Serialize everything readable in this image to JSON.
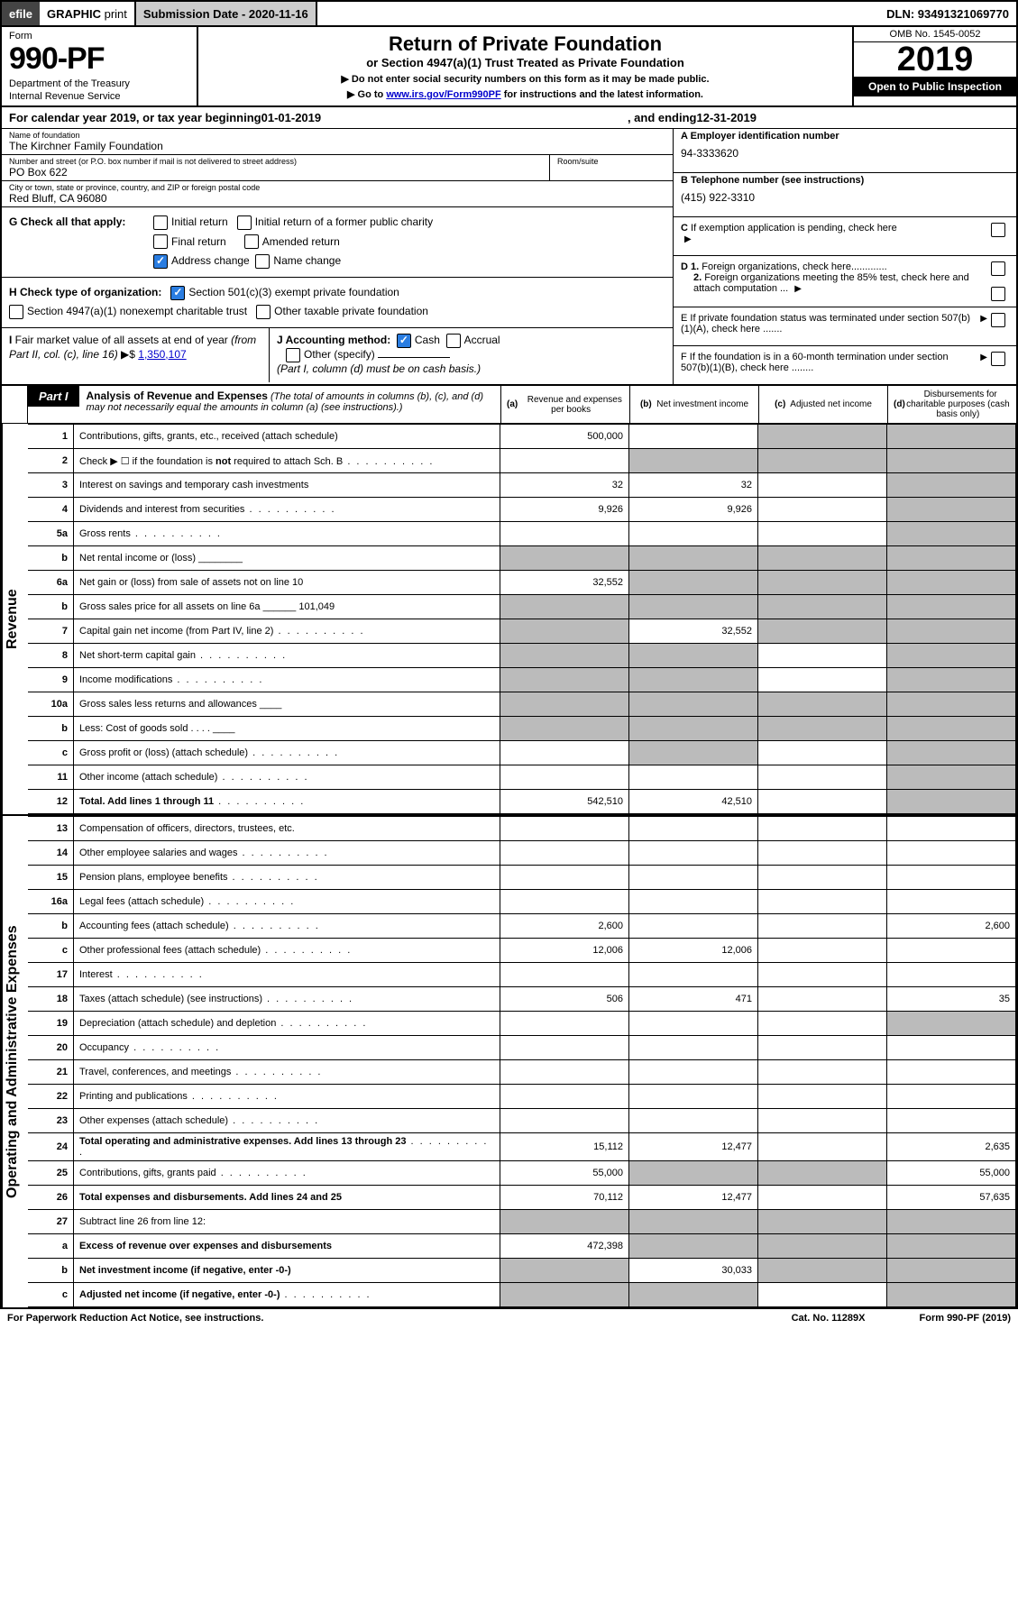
{
  "topbar": {
    "efile": "efile",
    "graphic": "GRAPHIC",
    "print": "print",
    "sub_date_label": "Submission Date - 2020-11-16",
    "dln": "DLN: 93491321069770"
  },
  "header": {
    "form_label": "Form",
    "form_number": "990-PF",
    "dept1": "Department of the Treasury",
    "dept2": "Internal Revenue Service",
    "title": "Return of Private Foundation",
    "subtitle": "or Section 4947(a)(1) Trust Treated as Private Foundation",
    "note1": "▶ Do not enter social security numbers on this form as it may be made public.",
    "note2_pre": "▶ Go to ",
    "note2_link": "www.irs.gov/Form990PF",
    "note2_post": " for instructions and the latest information.",
    "omb": "OMB No. 1545-0052",
    "year": "2019",
    "open": "Open to Public Inspection"
  },
  "cal_year": {
    "pre": "For calendar year 2019, or tax year beginning ",
    "begin": "01-01-2019",
    "mid": ", and ending ",
    "end": "12-31-2019"
  },
  "entity": {
    "name_label": "Name of foundation",
    "name": "The Kirchner Family Foundation",
    "addr_label": "Number and street (or P.O. box number if mail is not delivered to street address)",
    "addr": "PO Box 622",
    "room_label": "Room/suite",
    "city_label": "City or town, state or province, country, and ZIP or foreign postal code",
    "city": "Red Bluff, CA  96080",
    "ein_label": "A Employer identification number",
    "ein": "94-3333620",
    "phone_label": "B Telephone number (see instructions)",
    "phone": "(415) 922-3310",
    "c_label": "C If exemption application is pending, check here"
  },
  "section_g": {
    "label": "G Check all that apply:",
    "opts": [
      "Initial return",
      "Initial return of a former public charity",
      "Final return",
      "Amended return",
      "Address change",
      "Name change"
    ],
    "checked": [
      false,
      false,
      false,
      false,
      true,
      false
    ]
  },
  "section_h": {
    "label": "H Check type of organization:",
    "opt1": "Section 501(c)(3) exempt private foundation",
    "opt2": "Section 4947(a)(1) nonexempt charitable trust",
    "opt3": "Other taxable private foundation",
    "checked": [
      true,
      false,
      false
    ]
  },
  "section_i": {
    "label": "I Fair market value of all assets at end of year (from Part II, col. (c), line 16) ▶$",
    "value": "1,350,107"
  },
  "section_j": {
    "label": "J Accounting method:",
    "cash": "Cash",
    "accrual": "Accrual",
    "other": "Other (specify)",
    "note": "(Part I, column (d) must be on cash basis.)",
    "cash_checked": true
  },
  "right_d": {
    "d1": "D 1. Foreign organizations, check here.............",
    "d2": "2. Foreign organizations meeting the 85% test, check here and attach computation ..."
  },
  "right_e": "E If private foundation status was terminated under section 507(b)(1)(A), check here .......",
  "right_f": "F If the foundation is in a 60-month termination under section 507(b)(1)(B), check here ........",
  "part1": {
    "tab": "Part I",
    "title": "Analysis of Revenue and Expenses",
    "desc": "(The total of amounts in columns (b), (c), and (d) may not necessarily equal the amounts in column (a) (see instructions).)",
    "col_a": "(a)   Revenue and expenses per books",
    "col_b": "(b)  Net investment income",
    "col_c": "(c)  Adjusted net income",
    "col_d": "(d)  Disbursements for charitable purposes (cash basis only)"
  },
  "side_labels": {
    "revenue": "Revenue",
    "expenses": "Operating and Administrative Expenses"
  },
  "rows": [
    {
      "n": "1",
      "d": "Contributions, gifts, grants, etc., received (attach schedule)",
      "a": "500,000",
      "b": "",
      "c": "grey",
      "dv": "grey"
    },
    {
      "n": "2",
      "d": "Check ▶ ☐ if the foundation is not required to attach Sch. B",
      "a": "",
      "b": "grey",
      "c": "grey",
      "dv": "grey",
      "dots": true,
      "bold_not": true
    },
    {
      "n": "3",
      "d": "Interest on savings and temporary cash investments",
      "a": "32",
      "b": "32",
      "c": "",
      "dv": "grey"
    },
    {
      "n": "4",
      "d": "Dividends and interest from securities",
      "a": "9,926",
      "b": "9,926",
      "c": "",
      "dv": "grey",
      "dots": true
    },
    {
      "n": "5a",
      "d": "Gross rents",
      "a": "",
      "b": "",
      "c": "",
      "dv": "grey",
      "dots": true
    },
    {
      "n": "b",
      "d": "Net rental income or (loss)  ________",
      "a": "grey",
      "b": "grey",
      "c": "grey",
      "dv": "grey"
    },
    {
      "n": "6a",
      "d": "Net gain or (loss) from sale of assets not on line 10",
      "a": "32,552",
      "b": "grey",
      "c": "grey",
      "dv": "grey"
    },
    {
      "n": "b",
      "d": "Gross sales price for all assets on line 6a ______ 101,049",
      "a": "grey",
      "b": "grey",
      "c": "grey",
      "dv": "grey"
    },
    {
      "n": "7",
      "d": "Capital gain net income (from Part IV, line 2)",
      "a": "grey",
      "b": "32,552",
      "c": "grey",
      "dv": "grey",
      "dots": true
    },
    {
      "n": "8",
      "d": "Net short-term capital gain",
      "a": "grey",
      "b": "grey",
      "c": "",
      "dv": "grey",
      "dots": true
    },
    {
      "n": "9",
      "d": "Income modifications",
      "a": "grey",
      "b": "grey",
      "c": "",
      "dv": "grey",
      "dots": true
    },
    {
      "n": "10a",
      "d": "Gross sales less returns and allowances  ____",
      "a": "grey",
      "b": "grey",
      "c": "grey",
      "dv": "grey"
    },
    {
      "n": "b",
      "d": "Less: Cost of goods sold   . . . .  ____",
      "a": "grey",
      "b": "grey",
      "c": "grey",
      "dv": "grey"
    },
    {
      "n": "c",
      "d": "Gross profit or (loss) (attach schedule)",
      "a": "",
      "b": "grey",
      "c": "",
      "dv": "grey",
      "dots": true
    },
    {
      "n": "11",
      "d": "Other income (attach schedule)",
      "a": "",
      "b": "",
      "c": "",
      "dv": "grey",
      "dots": true
    },
    {
      "n": "12",
      "d": "Total. Add lines 1 through 11",
      "a": "542,510",
      "b": "42,510",
      "c": "",
      "dv": "grey",
      "dots": true,
      "bold": true
    }
  ],
  "rows2": [
    {
      "n": "13",
      "d": "Compensation of officers, directors, trustees, etc.",
      "a": "",
      "b": "",
      "c": "",
      "dv": ""
    },
    {
      "n": "14",
      "d": "Other employee salaries and wages",
      "a": "",
      "b": "",
      "c": "",
      "dv": "",
      "dots": true
    },
    {
      "n": "15",
      "d": "Pension plans, employee benefits",
      "a": "",
      "b": "",
      "c": "",
      "dv": "",
      "dots": true
    },
    {
      "n": "16a",
      "d": "Legal fees (attach schedule)",
      "a": "",
      "b": "",
      "c": "",
      "dv": "",
      "dots": true
    },
    {
      "n": "b",
      "d": "Accounting fees (attach schedule)",
      "a": "2,600",
      "b": "",
      "c": "",
      "dv": "2,600",
      "dots": true
    },
    {
      "n": "c",
      "d": "Other professional fees (attach schedule)",
      "a": "12,006",
      "b": "12,006",
      "c": "",
      "dv": "",
      "dots": true
    },
    {
      "n": "17",
      "d": "Interest",
      "a": "",
      "b": "",
      "c": "",
      "dv": "",
      "dots": true
    },
    {
      "n": "18",
      "d": "Taxes (attach schedule) (see instructions)",
      "a": "506",
      "b": "471",
      "c": "",
      "dv": "35",
      "dots": true
    },
    {
      "n": "19",
      "d": "Depreciation (attach schedule) and depletion",
      "a": "",
      "b": "",
      "c": "",
      "dv": "grey",
      "dots": true
    },
    {
      "n": "20",
      "d": "Occupancy",
      "a": "",
      "b": "",
      "c": "",
      "dv": "",
      "dots": true
    },
    {
      "n": "21",
      "d": "Travel, conferences, and meetings",
      "a": "",
      "b": "",
      "c": "",
      "dv": "",
      "dots": true
    },
    {
      "n": "22",
      "d": "Printing and publications",
      "a": "",
      "b": "",
      "c": "",
      "dv": "",
      "dots": true
    },
    {
      "n": "23",
      "d": "Other expenses (attach schedule)",
      "a": "",
      "b": "",
      "c": "",
      "dv": "",
      "dots": true
    },
    {
      "n": "24",
      "d": "Total operating and administrative expenses. Add lines 13 through 23",
      "a": "15,112",
      "b": "12,477",
      "c": "",
      "dv": "2,635",
      "dots": true,
      "bold": true
    },
    {
      "n": "25",
      "d": "Contributions, gifts, grants paid",
      "a": "55,000",
      "b": "grey",
      "c": "grey",
      "dv": "55,000",
      "dots": true
    },
    {
      "n": "26",
      "d": "Total expenses and disbursements. Add lines 24 and 25",
      "a": "70,112",
      "b": "12,477",
      "c": "",
      "dv": "57,635",
      "bold": true
    },
    {
      "n": "27",
      "d": "Subtract line 26 from line 12:",
      "a": "grey",
      "b": "grey",
      "c": "grey",
      "dv": "grey"
    },
    {
      "n": "a",
      "d": "Excess of revenue over expenses and disbursements",
      "a": "472,398",
      "b": "grey",
      "c": "grey",
      "dv": "grey",
      "bold": true
    },
    {
      "n": "b",
      "d": "Net investment income (if negative, enter -0-)",
      "a": "grey",
      "b": "30,033",
      "c": "grey",
      "dv": "grey",
      "bold": true
    },
    {
      "n": "c",
      "d": "Adjusted net income (if negative, enter -0-)",
      "a": "grey",
      "b": "grey",
      "c": "",
      "dv": "grey",
      "bold": true,
      "dots": true
    }
  ],
  "footer": {
    "left": "For Paperwork Reduction Act Notice, see instructions.",
    "mid": "Cat. No. 11289X",
    "right": "Form 990-PF (2019)"
  }
}
